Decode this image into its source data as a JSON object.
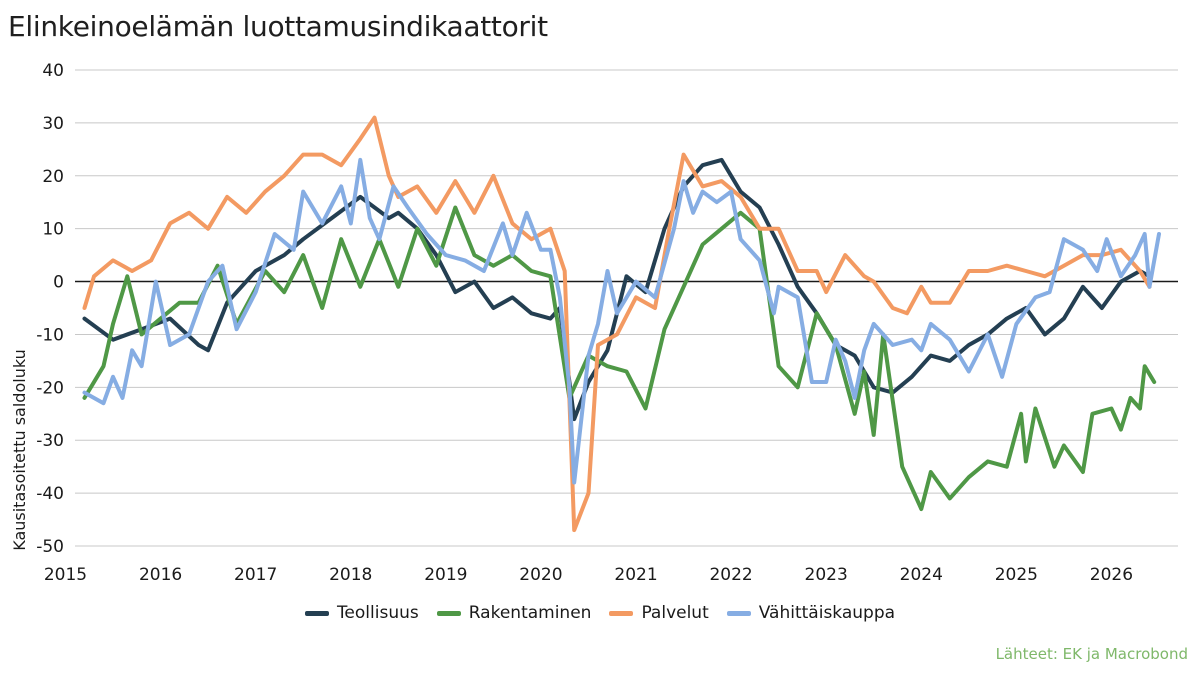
{
  "title": "Elinkeinoelämän luottamusindikaattorit",
  "source": "Lähteet: EK ja Macrobond",
  "colors": {
    "Teollisuus": "#243f52",
    "Rakentaminen": "#4f9846",
    "Palvelut": "#f39a62",
    "Vähittäiskauppa": "#86ade3"
  },
  "chart_data": {
    "type": "line",
    "title": "Elinkeinoelämän luottamusindikaattorit",
    "xlabel": "",
    "ylabel": "Kausitasoitettu saldoluku",
    "ylim": [
      -50,
      40
    ],
    "yticks": [
      40,
      30,
      20,
      10,
      0,
      -10,
      -20,
      -30,
      -40,
      -50
    ],
    "xlim": [
      2014.6,
      2026.2
    ],
    "xticks": [
      "2015",
      "2016",
      "2017",
      "2018",
      "2019",
      "2020",
      "2021",
      "2022",
      "2023",
      "2024",
      "2025",
      "2026"
    ],
    "grid": "horizontal",
    "zero_line": true,
    "legend_position": "bottom",
    "series": [
      {
        "name": "Teollisuus",
        "points": [
          [
            2014.7,
            -7
          ],
          [
            2015.0,
            -11
          ],
          [
            2015.3,
            -9
          ],
          [
            2015.6,
            -7
          ],
          [
            2015.9,
            -12
          ],
          [
            2016.0,
            -13
          ],
          [
            2016.2,
            -4
          ],
          [
            2016.5,
            2
          ],
          [
            2016.8,
            5
          ],
          [
            2017.0,
            8
          ],
          [
            2017.3,
            12
          ],
          [
            2017.6,
            16
          ],
          [
            2017.9,
            12
          ],
          [
            2018.0,
            13
          ],
          [
            2018.2,
            10
          ],
          [
            2018.4,
            5
          ],
          [
            2018.6,
            -2
          ],
          [
            2018.8,
            0
          ],
          [
            2019.0,
            -5
          ],
          [
            2019.2,
            -3
          ],
          [
            2019.4,
            -6
          ],
          [
            2019.6,
            -7
          ],
          [
            2019.7,
            -5
          ],
          [
            2019.85,
            -26
          ],
          [
            2020.0,
            -19
          ],
          [
            2020.2,
            -13
          ],
          [
            2020.4,
            1
          ],
          [
            2020.6,
            -2
          ],
          [
            2020.8,
            10
          ],
          [
            2021.0,
            18
          ],
          [
            2021.2,
            22
          ],
          [
            2021.4,
            23
          ],
          [
            2021.6,
            17
          ],
          [
            2021.8,
            14
          ],
          [
            2022.0,
            7
          ],
          [
            2022.2,
            -1
          ],
          [
            2022.4,
            -6
          ],
          [
            2022.6,
            -12
          ],
          [
            2022.8,
            -14
          ],
          [
            2023.0,
            -20
          ],
          [
            2023.2,
            -21
          ],
          [
            2023.4,
            -18
          ],
          [
            2023.6,
            -14
          ],
          [
            2023.8,
            -15
          ],
          [
            2024.0,
            -12
          ],
          [
            2024.2,
            -10
          ],
          [
            2024.4,
            -7
          ],
          [
            2024.6,
            -5
          ],
          [
            2024.8,
            -10
          ],
          [
            2025.0,
            -7
          ],
          [
            2025.2,
            -1
          ],
          [
            2025.4,
            -5
          ],
          [
            2025.6,
            0
          ],
          [
            2025.8,
            2
          ],
          [
            2025.9,
            1
          ]
        ]
      },
      {
        "name": "Rakentaminen",
        "points": [
          [
            2014.7,
            -22
          ],
          [
            2014.9,
            -16
          ],
          [
            2015.0,
            -8
          ],
          [
            2015.15,
            1
          ],
          [
            2015.3,
            -10
          ],
          [
            2015.5,
            -7
          ],
          [
            2015.7,
            -4
          ],
          [
            2015.9,
            -4
          ],
          [
            2016.1,
            3
          ],
          [
            2016.3,
            -8
          ],
          [
            2016.6,
            2
          ],
          [
            2016.8,
            -2
          ],
          [
            2017.0,
            5
          ],
          [
            2017.2,
            -5
          ],
          [
            2017.4,
            8
          ],
          [
            2017.6,
            -1
          ],
          [
            2017.8,
            8
          ],
          [
            2018.0,
            -1
          ],
          [
            2018.2,
            10
          ],
          [
            2018.4,
            3
          ],
          [
            2018.6,
            14
          ],
          [
            2018.8,
            5
          ],
          [
            2019.0,
            3
          ],
          [
            2019.2,
            5
          ],
          [
            2019.4,
            2
          ],
          [
            2019.6,
            1
          ],
          [
            2019.8,
            -22
          ],
          [
            2020.0,
            -14
          ],
          [
            2020.2,
            -16
          ],
          [
            2020.4,
            -17
          ],
          [
            2020.6,
            -24
          ],
          [
            2020.8,
            -9
          ],
          [
            2021.0,
            -1
          ],
          [
            2021.2,
            7
          ],
          [
            2021.4,
            10
          ],
          [
            2021.6,
            13
          ],
          [
            2021.8,
            10
          ],
          [
            2022.0,
            -16
          ],
          [
            2022.2,
            -20
          ],
          [
            2022.4,
            -6
          ],
          [
            2022.6,
            -12
          ],
          [
            2022.8,
            -25
          ],
          [
            2022.9,
            -17
          ],
          [
            2023.0,
            -29
          ],
          [
            2023.1,
            -10
          ],
          [
            2023.3,
            -35
          ],
          [
            2023.5,
            -43
          ],
          [
            2023.6,
            -36
          ],
          [
            2023.8,
            -41
          ],
          [
            2024.0,
            -37
          ],
          [
            2024.2,
            -34
          ],
          [
            2024.4,
            -35
          ],
          [
            2024.55,
            -25
          ],
          [
            2024.6,
            -34
          ],
          [
            2024.7,
            -24
          ],
          [
            2024.9,
            -35
          ],
          [
            2025.0,
            -31
          ],
          [
            2025.2,
            -36
          ],
          [
            2025.3,
            -25
          ],
          [
            2025.5,
            -24
          ],
          [
            2025.6,
            -28
          ],
          [
            2025.7,
            -22
          ],
          [
            2025.8,
            -24
          ],
          [
            2025.85,
            -16
          ],
          [
            2025.95,
            -19
          ]
        ]
      },
      {
        "name": "Palvelut",
        "points": [
          [
            2014.7,
            -5
          ],
          [
            2014.8,
            1
          ],
          [
            2015.0,
            4
          ],
          [
            2015.2,
            2
          ],
          [
            2015.4,
            4
          ],
          [
            2015.6,
            11
          ],
          [
            2015.8,
            13
          ],
          [
            2016.0,
            10
          ],
          [
            2016.2,
            16
          ],
          [
            2016.4,
            13
          ],
          [
            2016.6,
            17
          ],
          [
            2016.8,
            20
          ],
          [
            2017.0,
            24
          ],
          [
            2017.2,
            24
          ],
          [
            2017.4,
            22
          ],
          [
            2017.6,
            27
          ],
          [
            2017.75,
            31
          ],
          [
            2017.9,
            20
          ],
          [
            2018.0,
            16
          ],
          [
            2018.2,
            18
          ],
          [
            2018.4,
            13
          ],
          [
            2018.6,
            19
          ],
          [
            2018.8,
            13
          ],
          [
            2019.0,
            20
          ],
          [
            2019.2,
            11
          ],
          [
            2019.4,
            8
          ],
          [
            2019.6,
            10
          ],
          [
            2019.75,
            2
          ],
          [
            2019.85,
            -47
          ],
          [
            2020.0,
            -40
          ],
          [
            2020.1,
            -12
          ],
          [
            2020.3,
            -10
          ],
          [
            2020.5,
            -3
          ],
          [
            2020.7,
            -5
          ],
          [
            2020.85,
            10
          ],
          [
            2021.0,
            24
          ],
          [
            2021.2,
            18
          ],
          [
            2021.4,
            19
          ],
          [
            2021.6,
            16
          ],
          [
            2021.8,
            10
          ],
          [
            2022.0,
            10
          ],
          [
            2022.2,
            2
          ],
          [
            2022.4,
            2
          ],
          [
            2022.5,
            -2
          ],
          [
            2022.7,
            5
          ],
          [
            2022.9,
            1
          ],
          [
            2023.0,
            0
          ],
          [
            2023.2,
            -5
          ],
          [
            2023.35,
            -6
          ],
          [
            2023.5,
            -1
          ],
          [
            2023.6,
            -4
          ],
          [
            2023.8,
            -4
          ],
          [
            2024.0,
            2
          ],
          [
            2024.2,
            2
          ],
          [
            2024.4,
            3
          ],
          [
            2024.6,
            2
          ],
          [
            2024.8,
            1
          ],
          [
            2025.0,
            3
          ],
          [
            2025.2,
            5
          ],
          [
            2025.4,
            5
          ],
          [
            2025.6,
            6
          ],
          [
            2025.8,
            2
          ],
          [
            2025.9,
            -1
          ]
        ]
      },
      {
        "name": "Vähittäiskauppa",
        "points": [
          [
            2014.7,
            -21
          ],
          [
            2014.9,
            -23
          ],
          [
            2015.0,
            -18
          ],
          [
            2015.1,
            -22
          ],
          [
            2015.2,
            -13
          ],
          [
            2015.3,
            -16
          ],
          [
            2015.45,
            0
          ],
          [
            2015.6,
            -12
          ],
          [
            2015.8,
            -10
          ],
          [
            2016.0,
            0
          ],
          [
            2016.15,
            3
          ],
          [
            2016.3,
            -9
          ],
          [
            2016.5,
            -2
          ],
          [
            2016.7,
            9
          ],
          [
            2016.9,
            6
          ],
          [
            2017.0,
            17
          ],
          [
            2017.2,
            11
          ],
          [
            2017.4,
            18
          ],
          [
            2017.5,
            11
          ],
          [
            2017.6,
            23
          ],
          [
            2017.7,
            12
          ],
          [
            2017.8,
            8
          ],
          [
            2017.95,
            18
          ],
          [
            2018.1,
            14
          ],
          [
            2018.3,
            9
          ],
          [
            2018.5,
            5
          ],
          [
            2018.7,
            4
          ],
          [
            2018.9,
            2
          ],
          [
            2019.1,
            11
          ],
          [
            2019.2,
            5
          ],
          [
            2019.35,
            13
          ],
          [
            2019.5,
            6
          ],
          [
            2019.6,
            6
          ],
          [
            2019.7,
            -3
          ],
          [
            2019.8,
            -20
          ],
          [
            2019.85,
            -38
          ],
          [
            2020.0,
            -14
          ],
          [
            2020.1,
            -8
          ],
          [
            2020.2,
            2
          ],
          [
            2020.3,
            -6
          ],
          [
            2020.5,
            0
          ],
          [
            2020.7,
            -3
          ],
          [
            2020.9,
            10
          ],
          [
            2021.0,
            19
          ],
          [
            2021.1,
            13
          ],
          [
            2021.2,
            17
          ],
          [
            2021.35,
            15
          ],
          [
            2021.5,
            17
          ],
          [
            2021.6,
            8
          ],
          [
            2021.8,
            4
          ],
          [
            2021.95,
            -6
          ],
          [
            2022.0,
            -1
          ],
          [
            2022.2,
            -3
          ],
          [
            2022.35,
            -19
          ],
          [
            2022.5,
            -19
          ],
          [
            2022.6,
            -11
          ],
          [
            2022.7,
            -15
          ],
          [
            2022.8,
            -22
          ],
          [
            2022.9,
            -13
          ],
          [
            2023.0,
            -8
          ],
          [
            2023.2,
            -12
          ],
          [
            2023.4,
            -11
          ],
          [
            2023.5,
            -13
          ],
          [
            2023.6,
            -8
          ],
          [
            2023.8,
            -11
          ],
          [
            2024.0,
            -17
          ],
          [
            2024.2,
            -10
          ],
          [
            2024.35,
            -18
          ],
          [
            2024.5,
            -8
          ],
          [
            2024.7,
            -3
          ],
          [
            2024.85,
            -2
          ],
          [
            2025.0,
            8
          ],
          [
            2025.2,
            6
          ],
          [
            2025.35,
            2
          ],
          [
            2025.45,
            8
          ],
          [
            2025.6,
            1
          ],
          [
            2025.75,
            5
          ],
          [
            2025.85,
            9
          ],
          [
            2025.9,
            -1
          ],
          [
            2026.0,
            9
          ]
        ]
      }
    ]
  }
}
